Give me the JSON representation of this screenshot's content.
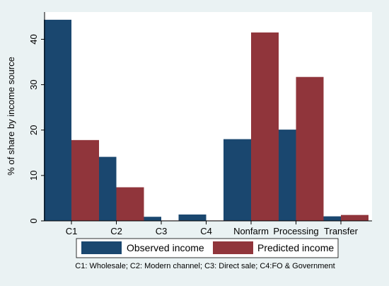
{
  "chart_data": {
    "type": "bar",
    "title": "",
    "xlabel": "",
    "ylabel": "% of share by income source",
    "categories": [
      "C1",
      "C2",
      "C3",
      "C4",
      "Nonfarm",
      "Processing",
      "Transfer"
    ],
    "series": [
      {
        "name": "Observed income",
        "color": "#1a476f",
        "values": [
          44.3,
          14.1,
          0.9,
          1.4,
          18.0,
          20.1,
          1.0
        ]
      },
      {
        "name": "Predicted income",
        "color": "#90353b",
        "values": [
          17.8,
          7.4,
          0.05,
          0.05,
          41.5,
          31.7,
          1.3
        ]
      }
    ],
    "ylim": [
      0,
      46
    ],
    "yticks": [
      0,
      10,
      20,
      30,
      40
    ],
    "grid": false,
    "legend_position": "bottom",
    "note": "C1: Wholesale; C2: Modern channel; C3: Direct sale; C4:FO & Government"
  },
  "colors": {
    "background": "#eaf2f3",
    "plot_background": "#ffffff"
  }
}
